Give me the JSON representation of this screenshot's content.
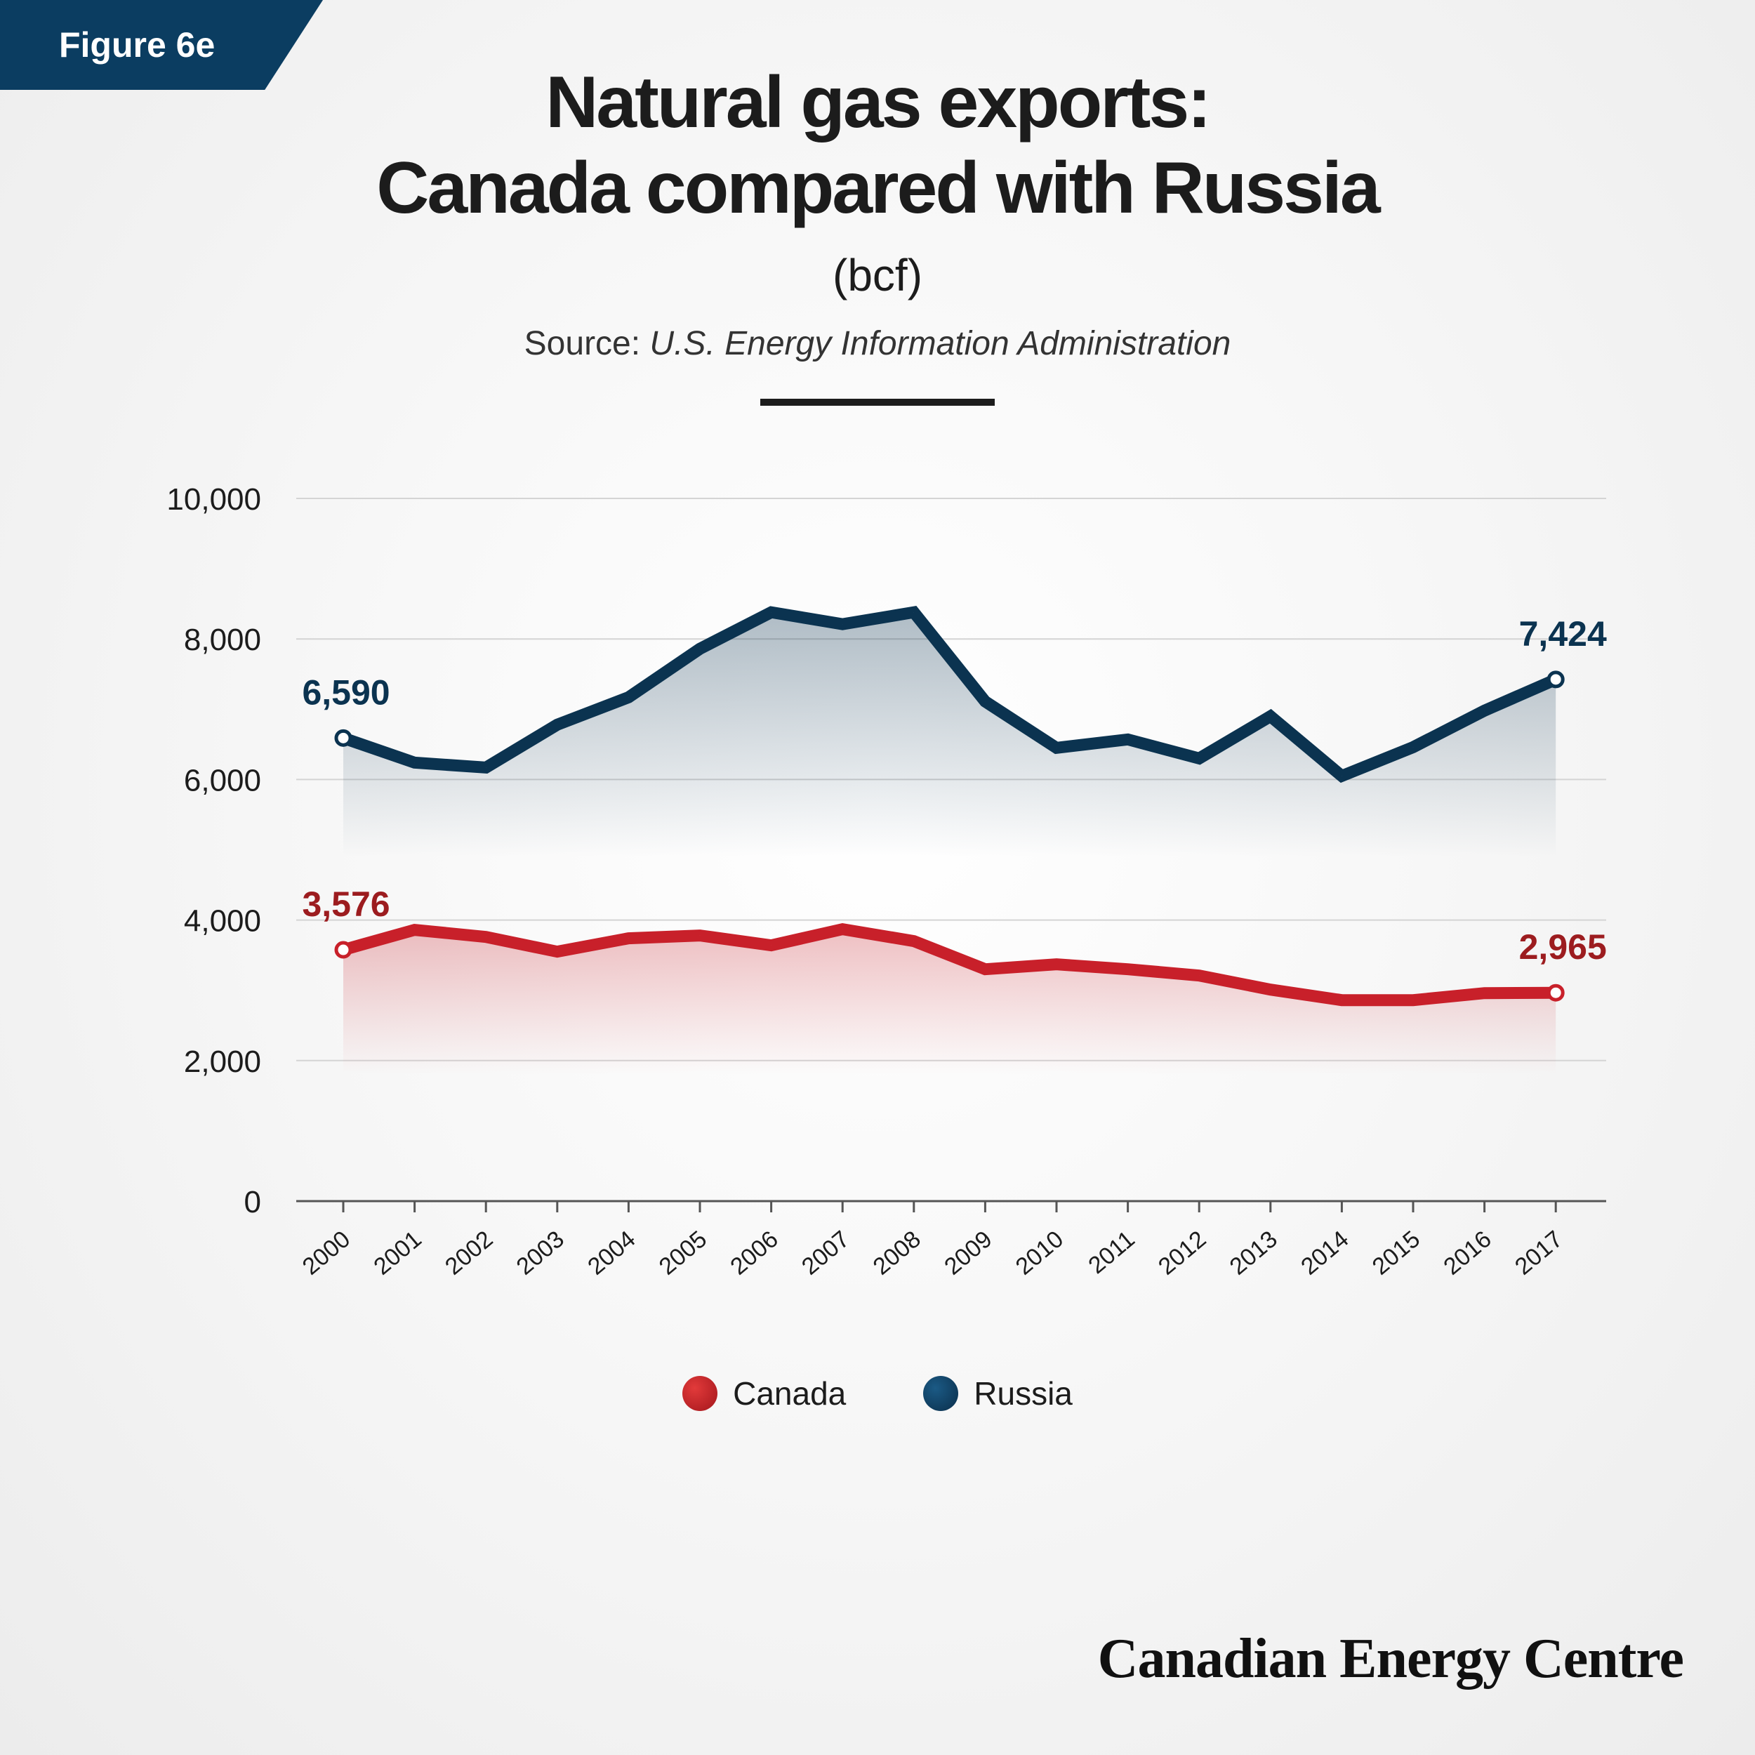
{
  "badge": "Figure 6e",
  "title_line1": "Natural gas exports:",
  "title_line2": "Canada compared with Russia",
  "unit": "(bcf)",
  "source_prefix": "Source: ",
  "source_name": "U.S. Energy Information Administration",
  "brand": "Canadian Energy Centre",
  "colors": {
    "canada": "#c8202a",
    "canada_label": "#9c1c1f",
    "russia": "#0b3350",
    "grid": "#d4d4d4",
    "axis": "#555555"
  },
  "chart_data": {
    "type": "line",
    "title": "Natural gas exports: Canada compared with Russia",
    "ylabel": "(bcf)",
    "ylim": [
      0,
      10000
    ],
    "yticks": [
      0,
      2000,
      4000,
      6000,
      8000,
      10000
    ],
    "ytick_labels": [
      "0",
      "2,000",
      "4,000",
      "6,000",
      "8,000",
      "10,000"
    ],
    "grid": true,
    "legend_position": "bottom-center",
    "x": [
      "2000",
      "2001",
      "2002",
      "2003",
      "2004",
      "2005",
      "2006",
      "2007",
      "2008",
      "2009",
      "2010",
      "2011",
      "2012",
      "2013",
      "2014",
      "2015",
      "2016",
      "2017"
    ],
    "series": [
      {
        "name": "Canada",
        "values": [
          3576,
          3860,
          3760,
          3550,
          3740,
          3780,
          3640,
          3870,
          3700,
          3300,
          3370,
          3300,
          3210,
          3010,
          2860,
          2860,
          2960,
          2965
        ],
        "start_label": "3,576",
        "end_label": "2,965"
      },
      {
        "name": "Russia",
        "values": [
          6590,
          6240,
          6170,
          6780,
          7170,
          7860,
          8380,
          8210,
          8380,
          7110,
          6450,
          6570,
          6300,
          6900,
          6050,
          6460,
          6980,
          7424
        ],
        "start_label": "6,590",
        "end_label": "7,424"
      }
    ]
  }
}
